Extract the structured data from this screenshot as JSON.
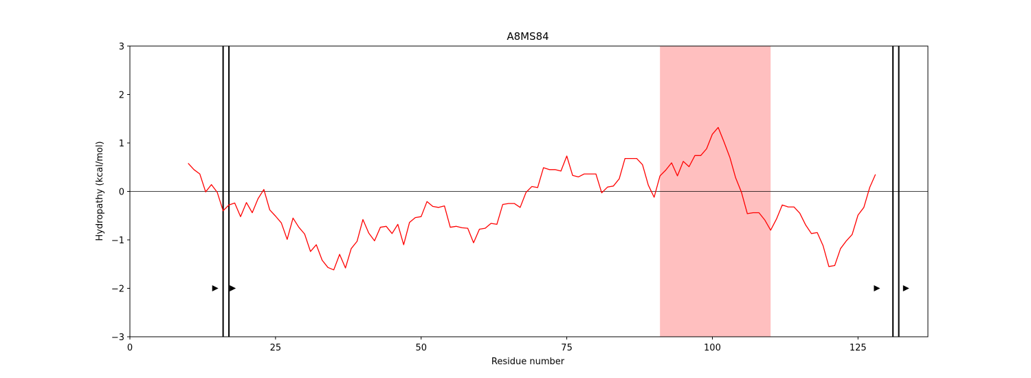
{
  "chart_data": {
    "type": "line",
    "title": "A8MS84",
    "xlabel": "Residue number",
    "ylabel": "Hydropathy (kcal/mol)",
    "xlim": [
      0,
      137
    ],
    "ylim": [
      -3,
      3
    ],
    "x_ticks": [
      0,
      25,
      50,
      75,
      100,
      125
    ],
    "y_ticks": [
      -3,
      -2,
      -1,
      0,
      1,
      2,
      3
    ],
    "x_tick_labels": [
      "0",
      "25",
      "50",
      "75",
      "100",
      "125"
    ],
    "y_tick_labels": [
      "−3",
      "−2",
      "−1",
      "0",
      "1",
      "2",
      "3"
    ],
    "grid": false,
    "zero_line": 0,
    "line_color": "#ff0000",
    "highlight_color": "#ffbfbf",
    "highlight_region": [
      91,
      110
    ],
    "vertical_lines": [
      16,
      17,
      131,
      132
    ],
    "markers": [
      {
        "x": 14.6,
        "y": -2
      },
      {
        "x": 17.6,
        "y": -2
      },
      {
        "x": 128.2,
        "y": -2
      },
      {
        "x": 133.2,
        "y": -2
      }
    ],
    "series": [
      {
        "x": [
          10,
          11,
          12,
          13,
          14,
          15,
          16,
          17,
          18,
          19,
          20,
          21,
          22,
          23,
          24,
          25,
          26,
          27,
          28,
          29,
          30,
          31,
          32,
          33,
          34,
          35,
          36,
          37,
          38,
          39,
          40,
          41,
          42,
          43,
          44,
          45,
          46,
          47,
          48,
          49,
          50,
          51,
          52,
          53,
          54,
          55,
          56,
          57,
          58,
          59,
          60,
          61,
          62,
          63,
          64,
          65,
          66,
          67,
          68,
          69,
          70,
          71,
          72,
          73,
          74,
          75,
          76,
          77,
          78,
          79,
          80,
          81,
          82,
          83,
          84,
          85,
          86,
          87,
          88,
          89,
          90,
          91,
          92,
          93,
          94,
          95,
          96,
          97,
          98,
          99,
          100,
          101,
          102,
          103,
          104,
          105,
          106,
          107,
          108,
          109,
          110,
          111,
          112,
          113,
          114,
          115,
          116,
          117,
          118,
          119,
          120,
          121,
          122,
          123,
          124,
          125,
          126,
          127,
          128
        ],
        "y": [
          0.58,
          0.45,
          0.36,
          -0.01,
          0.14,
          -0.02,
          -0.4,
          -0.28,
          -0.24,
          -0.52,
          -0.23,
          -0.44,
          -0.15,
          0.04,
          -0.38,
          -0.51,
          -0.65,
          -0.99,
          -0.55,
          -0.74,
          -0.88,
          -1.24,
          -1.1,
          -1.42,
          -1.57,
          -1.62,
          -1.3,
          -1.58,
          -1.18,
          -1.03,
          -0.58,
          -0.86,
          -1.02,
          -0.74,
          -0.72,
          -0.87,
          -0.68,
          -1.1,
          -0.64,
          -0.54,
          -0.52,
          -0.21,
          -0.31,
          -0.33,
          -0.3,
          -0.74,
          -0.72,
          -0.75,
          -0.76,
          -1.06,
          -0.78,
          -0.76,
          -0.66,
          -0.68,
          -0.27,
          -0.25,
          -0.25,
          -0.33,
          -0.02,
          0.1,
          0.08,
          0.49,
          0.45,
          0.45,
          0.42,
          0.73,
          0.33,
          0.3,
          0.36,
          0.36,
          0.36,
          -0.03,
          0.09,
          0.11,
          0.26,
          0.68,
          0.68,
          0.68,
          0.55,
          0.13,
          -0.12,
          0.32,
          0.44,
          0.59,
          0.32,
          0.62,
          0.51,
          0.74,
          0.74,
          0.88,
          1.18,
          1.32,
          1.02,
          0.7,
          0.28,
          -0.02,
          -0.46,
          -0.44,
          -0.44,
          -0.59,
          -0.8,
          -0.57,
          -0.28,
          -0.32,
          -0.32,
          -0.45,
          -0.69,
          -0.87,
          -0.85,
          -1.12,
          -1.55,
          -1.53,
          -1.18,
          -1.02,
          -0.89,
          -0.49,
          -0.33,
          0.08,
          0.35
        ]
      }
    ]
  }
}
